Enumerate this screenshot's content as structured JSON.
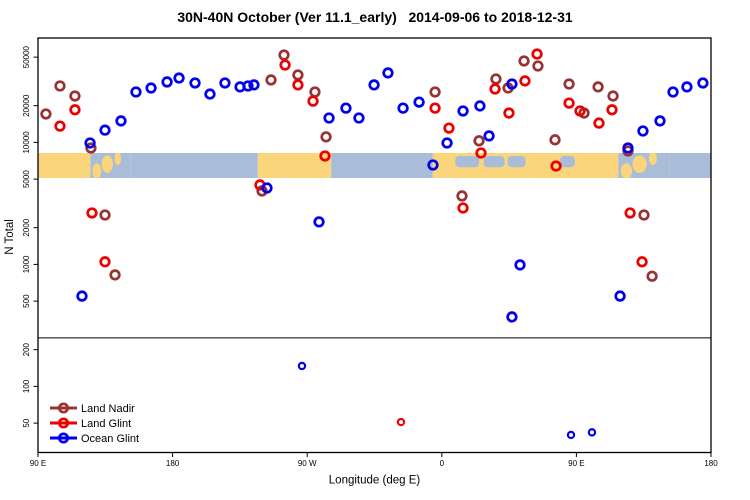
{
  "title": "30N-40N October (Ver 11.1_early)   2014-09-06 to 2018-12-31",
  "chart_data": {
    "type": "scatter",
    "title": "30N-40N October (Ver 11.1_early)   2014-09-06 to 2018-12-31",
    "xlabel": "Longitude (deg E)",
    "ylabel": "N Total",
    "y_scale": "log",
    "ylim": [
      27,
      69000
    ],
    "x_axis_span_deg": 450,
    "x_ticks": [
      {
        "deg": 0,
        "label": "90 E"
      },
      {
        "deg": 90,
        "label": "180"
      },
      {
        "deg": 180,
        "label": "90 W"
      },
      {
        "deg": 270,
        "label": "0"
      },
      {
        "deg": 360,
        "label": "90 E"
      },
      {
        "deg": 450,
        "label": "180"
      }
    ],
    "y_ticks": [
      {
        "n": 50000,
        "label": "50000"
      },
      {
        "n": 20000,
        "label": "20000"
      },
      {
        "n": 10000,
        "label": "10000"
      },
      {
        "n": 5000,
        "label": "5000"
      },
      {
        "n": 2000,
        "label": "2000"
      },
      {
        "n": 1000,
        "label": "1000"
      },
      {
        "n": 500,
        "label": "500"
      },
      {
        "n": 200,
        "label": "200"
      },
      {
        "n": 100,
        "label": "100"
      },
      {
        "n": 50,
        "label": "50"
      }
    ],
    "threshold_line_n": 250,
    "map_band": {
      "n_top": 8200,
      "n_bottom": 5100,
      "land_color": "#FBD57C",
      "ocean_color": "#A9BDD9",
      "segments": [
        {
          "from": 0,
          "to": 35,
          "type": "land"
        },
        {
          "from": 35,
          "to": 62,
          "type": "japan"
        },
        {
          "from": 62,
          "to": 147,
          "type": "ocean"
        },
        {
          "from": 147,
          "to": 196,
          "type": "land"
        },
        {
          "from": 196,
          "to": 264,
          "type": "ocean"
        },
        {
          "from": 264,
          "to": 330,
          "type": "mediterranean"
        },
        {
          "from": 330,
          "to": 388,
          "type": "land"
        },
        {
          "from": 388,
          "to": 422,
          "type": "japan"
        },
        {
          "from": 422,
          "to": 450,
          "type": "ocean"
        }
      ],
      "sea_patches": [
        {
          "from": 279,
          "to": 295
        },
        {
          "from": 298,
          "to": 312
        },
        {
          "from": 314,
          "to": 326
        },
        {
          "from": 349,
          "to": 359
        }
      ]
    },
    "legend_position": "bottom-left",
    "series": [
      {
        "name": "Land Nadir",
        "color": "#993333",
        "points": [
          {
            "deg": 5.3,
            "n": 17100
          },
          {
            "deg": 14.7,
            "n": 29000
          },
          {
            "deg": 24.7,
            "n": 24000
          },
          {
            "deg": 35.4,
            "n": 9000
          },
          {
            "deg": 44.8,
            "n": 2540
          },
          {
            "deg": 51.5,
            "n": 820
          },
          {
            "deg": 149.8,
            "n": 4000
          },
          {
            "deg": 155.8,
            "n": 32500
          },
          {
            "deg": 164.5,
            "n": 52000
          },
          {
            "deg": 173.8,
            "n": 35700
          },
          {
            "deg": 185.2,
            "n": 25900
          },
          {
            "deg": 192.6,
            "n": 11100
          },
          {
            "deg": 265.5,
            "n": 25900
          },
          {
            "deg": 283.5,
            "n": 3640
          },
          {
            "deg": 294.9,
            "n": 10300
          },
          {
            "deg": 306.2,
            "n": 33100
          },
          {
            "deg": 314.3,
            "n": 27900
          },
          {
            "deg": 325.0,
            "n": 46500
          },
          {
            "deg": 334.3,
            "n": 42300
          },
          {
            "deg": 345.7,
            "n": 10500
          },
          {
            "deg": 355.1,
            "n": 30100
          },
          {
            "deg": 365.1,
            "n": 17400
          },
          {
            "deg": 374.5,
            "n": 28500
          },
          {
            "deg": 384.5,
            "n": 24000
          },
          {
            "deg": 394.5,
            "n": 8500
          },
          {
            "deg": 405.2,
            "n": 2540
          },
          {
            "deg": 410.6,
            "n": 800
          }
        ]
      },
      {
        "name": "Land Glint",
        "color": "#EE0000",
        "points": [
          {
            "deg": 14.7,
            "n": 13600
          },
          {
            "deg": 24.7,
            "n": 18500
          },
          {
            "deg": 36.1,
            "n": 2640
          },
          {
            "deg": 44.8,
            "n": 1050
          },
          {
            "deg": 148.4,
            "n": 4480
          },
          {
            "deg": 165.2,
            "n": 43100
          },
          {
            "deg": 173.8,
            "n": 29600
          },
          {
            "deg": 183.9,
            "n": 21800
          },
          {
            "deg": 191.9,
            "n": 7740
          },
          {
            "deg": 242.7,
            "n": 51
          },
          {
            "deg": 265.5,
            "n": 19100
          },
          {
            "deg": 274.8,
            "n": 13100
          },
          {
            "deg": 284.2,
            "n": 2900
          },
          {
            "deg": 296.2,
            "n": 8190
          },
          {
            "deg": 305.6,
            "n": 27400
          },
          {
            "deg": 314.9,
            "n": 17400
          },
          {
            "deg": 325.6,
            "n": 31900
          },
          {
            "deg": 333.7,
            "n": 53000
          },
          {
            "deg": 346.4,
            "n": 6400
          },
          {
            "deg": 355.1,
            "n": 21000
          },
          {
            "deg": 362.4,
            "n": 18100
          },
          {
            "deg": 375.1,
            "n": 14400
          },
          {
            "deg": 383.8,
            "n": 18500
          },
          {
            "deg": 395.9,
            "n": 2640
          },
          {
            "deg": 403.9,
            "n": 1050
          }
        ]
      },
      {
        "name": "Ocean Glint",
        "color": "#0000EE",
        "points": [
          {
            "deg": 29.4,
            "n": 550
          },
          {
            "deg": 34.8,
            "n": 9890
          },
          {
            "deg": 44.8,
            "n": 12600
          },
          {
            "deg": 55.5,
            "n": 15000
          },
          {
            "deg": 65.5,
            "n": 25900
          },
          {
            "deg": 75.6,
            "n": 27900
          },
          {
            "deg": 86.3,
            "n": 31300
          },
          {
            "deg": 94.3,
            "n": 33700
          },
          {
            "deg": 105.0,
            "n": 30700
          },
          {
            "deg": 115.0,
            "n": 24900
          },
          {
            "deg": 125.0,
            "n": 30700
          },
          {
            "deg": 135.1,
            "n": 28500
          },
          {
            "deg": 140.4,
            "n": 29000
          },
          {
            "deg": 144.4,
            "n": 29600
          },
          {
            "deg": 153.1,
            "n": 4230
          },
          {
            "deg": 176.5,
            "n": 147
          },
          {
            "deg": 187.9,
            "n": 2230
          },
          {
            "deg": 194.6,
            "n": 15850
          },
          {
            "deg": 205.9,
            "n": 19100
          },
          {
            "deg": 214.6,
            "n": 15850
          },
          {
            "deg": 224.7,
            "n": 29600
          },
          {
            "deg": 234.0,
            "n": 37100
          },
          {
            "deg": 244.1,
            "n": 19100
          },
          {
            "deg": 254.8,
            "n": 21400
          },
          {
            "deg": 264.1,
            "n": 6530
          },
          {
            "deg": 273.5,
            "n": 9890
          },
          {
            "deg": 284.2,
            "n": 18100
          },
          {
            "deg": 295.5,
            "n": 19900
          },
          {
            "deg": 301.6,
            "n": 11300
          },
          {
            "deg": 316.9,
            "n": 30100
          },
          {
            "deg": 322.3,
            "n": 990
          },
          {
            "deg": 316.9,
            "n": 371
          },
          {
            "deg": 356.4,
            "n": 40
          },
          {
            "deg": 370.4,
            "n": 42
          },
          {
            "deg": 389.2,
            "n": 550
          },
          {
            "deg": 394.5,
            "n": 9000
          },
          {
            "deg": 404.5,
            "n": 12400
          },
          {
            "deg": 415.9,
            "n": 15000
          },
          {
            "deg": 424.6,
            "n": 25900
          },
          {
            "deg": 433.9,
            "n": 28500
          },
          {
            "deg": 444.6,
            "n": 30700
          }
        ]
      }
    ]
  }
}
